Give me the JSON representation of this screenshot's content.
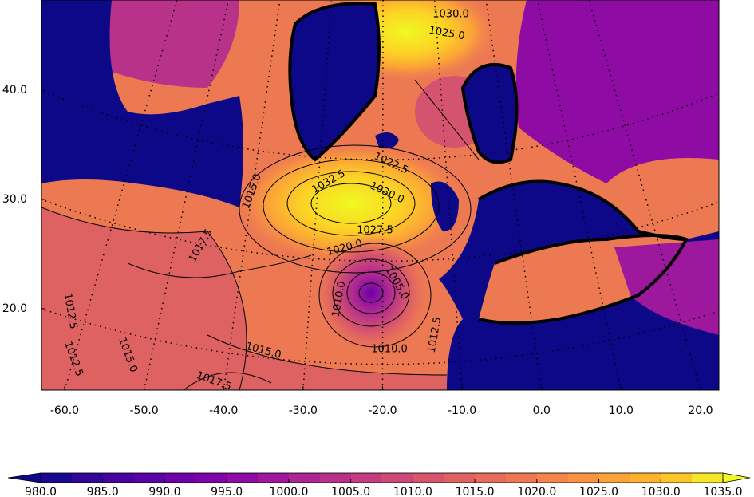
{
  "chart_data": {
    "type": "contour",
    "xlim": [
      -62.91,
      22.31
    ],
    "ylim": [
      12.55,
      48.25
    ],
    "xticks": [
      {
        "value": -60,
        "label": "-60.0"
      },
      {
        "value": -50,
        "label": "-50.0"
      },
      {
        "value": -40,
        "label": "-40.0"
      },
      {
        "value": -30,
        "label": "-30.0"
      },
      {
        "value": -20,
        "label": "-20.0"
      },
      {
        "value": -10,
        "label": "-10.0"
      },
      {
        "value": 0,
        "label": "0.0"
      },
      {
        "value": 10,
        "label": "10.0"
      },
      {
        "value": 20,
        "label": "20.0"
      }
    ],
    "yticks": [
      {
        "value": 20,
        "label": "20.0"
      },
      {
        "value": 30,
        "label": "30.0"
      },
      {
        "value": 40,
        "label": "40.0"
      }
    ],
    "grid": true,
    "contour_labels": [
      "1030.0",
      "1025.0",
      "1032.5",
      "1030.0",
      "1022.5",
      "1027.5",
      "1020.0",
      "1017.5",
      "1015.0",
      "1015.0",
      "1012.5",
      "1012.5",
      "1010.0",
      "1005.0",
      "1015.0",
      "1017.5",
      "1012.5",
      "1010.0"
    ],
    "colorbar": {
      "levels": [
        980,
        982.5,
        985,
        987.5,
        990,
        992.5,
        995,
        997.5,
        1000,
        1002.5,
        1005,
        1007.5,
        1010,
        1012.5,
        1015,
        1017.5,
        1020,
        1022.5,
        1025,
        1027.5,
        1030,
        1032.5,
        1035
      ],
      "colors": [
        "#1a0790",
        "#300597",
        "#4703a0",
        "#5801a4",
        "#6d00a8",
        "#7e03a8",
        "#8e0ca4",
        "#9e189d",
        "#ac2694",
        "#b8328a",
        "#c33d80",
        "#cd4a76",
        "#d6556d",
        "#df6263",
        "#e66c5c",
        "#ed7953",
        "#f3864a",
        "#f79342",
        "#fba238",
        "#fdb22f",
        "#fcc527",
        "#f5e726"
      ],
      "under_color": "#0d0887",
      "over_color": "#f0f921",
      "ticks": [
        {
          "value": 980,
          "label": "980.0"
        },
        {
          "value": 985,
          "label": "985.0"
        },
        {
          "value": 990,
          "label": "990.0"
        },
        {
          "value": 995,
          "label": "995.0"
        },
        {
          "value": 1000,
          "label": "1000.0"
        },
        {
          "value": 1005,
          "label": "1005.0"
        },
        {
          "value": 1010,
          "label": "1010.0"
        },
        {
          "value": 1015,
          "label": "1015.0"
        },
        {
          "value": 1020,
          "label": "1020.0"
        },
        {
          "value": 1025,
          "label": "1025.0"
        },
        {
          "value": 1030,
          "label": "1030.0"
        },
        {
          "value": 1035,
          "label": "1035.0"
        }
      ]
    }
  }
}
